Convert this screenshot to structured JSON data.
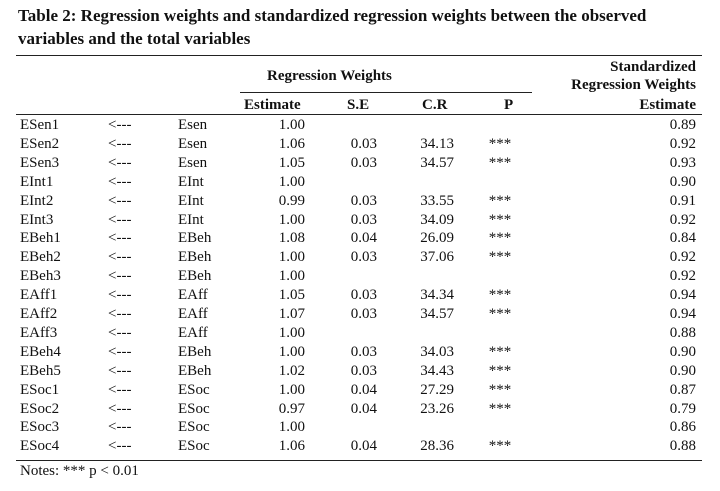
{
  "title": "Table 2: Regression weights and standardized regression weights between the observed variables and the total variables",
  "headers": {
    "regression_weights": "Regression Weights",
    "standardized_line1": "Standardized",
    "standardized_line2": "Regression Weights",
    "estimate": "Estimate",
    "se": "S.E",
    "cr": "C.R",
    "p": "P",
    "std_estimate": "Estimate"
  },
  "rows": [
    {
      "obs": "ESen1",
      "arrow": "<---",
      "latent": "Esen",
      "estimate": "1.00",
      "se": "",
      "cr": "",
      "p": "",
      "std": "0.89"
    },
    {
      "obs": "ESen2",
      "arrow": "<---",
      "latent": "Esen",
      "estimate": "1.06",
      "se": "0.03",
      "cr": "34.13",
      "p": "***",
      "std": "0.92"
    },
    {
      "obs": "ESen3",
      "arrow": "<---",
      "latent": "Esen",
      "estimate": "1.05",
      "se": "0.03",
      "cr": "34.57",
      "p": "***",
      "std": "0.93"
    },
    {
      "obs": "EInt1",
      "arrow": "<---",
      "latent": "EInt",
      "estimate": "1.00",
      "se": "",
      "cr": "",
      "p": "",
      "std": "0.90"
    },
    {
      "obs": "EInt2",
      "arrow": "<---",
      "latent": "EInt",
      "estimate": "0.99",
      "se": "0.03",
      "cr": "33.55",
      "p": "***",
      "std": "0.91"
    },
    {
      "obs": "EInt3",
      "arrow": "<---",
      "latent": "EInt",
      "estimate": "1.00",
      "se": "0.03",
      "cr": "34.09",
      "p": "***",
      "std": "0.92"
    },
    {
      "obs": "EBeh1",
      "arrow": "<---",
      "latent": "EBeh",
      "estimate": "1.08",
      "se": "0.04",
      "cr": "26.09",
      "p": "***",
      "std": "0.84"
    },
    {
      "obs": "EBeh2",
      "arrow": "<---",
      "latent": "EBeh",
      "estimate": "1.00",
      "se": "0.03",
      "cr": "37.06",
      "p": "***",
      "std": "0.92"
    },
    {
      "obs": "EBeh3",
      "arrow": "<---",
      "latent": "EBeh",
      "estimate": "1.00",
      "se": "",
      "cr": "",
      "p": "",
      "std": "0.92"
    },
    {
      "obs": "EAff1",
      "arrow": "<---",
      "latent": "EAff",
      "estimate": "1.05",
      "se": "0.03",
      "cr": "34.34",
      "p": "***",
      "std": "0.94"
    },
    {
      "obs": "EAff2",
      "arrow": "<---",
      "latent": "EAff",
      "estimate": "1.07",
      "se": "0.03",
      "cr": "34.57",
      "p": "***",
      "std": "0.94"
    },
    {
      "obs": "EAff3",
      "arrow": "<---",
      "latent": "EAff",
      "estimate": "1.00",
      "se": "",
      "cr": "",
      "p": "",
      "std": "0.88"
    },
    {
      "obs": "EBeh4",
      "arrow": "<---",
      "latent": "EBeh",
      "estimate": "1.00",
      "se": "0.03",
      "cr": "34.03",
      "p": "***",
      "std": "0.90"
    },
    {
      "obs": "EBeh5",
      "arrow": "<---",
      "latent": "EBeh",
      "estimate": "1.02",
      "se": "0.03",
      "cr": "34.43",
      "p": "***",
      "std": "0.90"
    },
    {
      "obs": "ESoc1",
      "arrow": "<---",
      "latent": "ESoc",
      "estimate": "1.00",
      "se": "0.04",
      "cr": "27.29",
      "p": "***",
      "std": "0.87"
    },
    {
      "obs": "ESoc2",
      "arrow": "<---",
      "latent": "ESoc",
      "estimate": "0.97",
      "se": "0.04",
      "cr": "23.26",
      "p": "***",
      "std": "0.79"
    },
    {
      "obs": "ESoc3",
      "arrow": "<---",
      "latent": "ESoc",
      "estimate": "1.00",
      "se": "",
      "cr": "",
      "p": "",
      "std": "0.86"
    },
    {
      "obs": "ESoc4",
      "arrow": "<---",
      "latent": "ESoc",
      "estimate": "1.06",
      "se": "0.04",
      "cr": "28.36",
      "p": "***",
      "std": "0.88"
    }
  ],
  "notes": "Notes: *** p < 0.01"
}
